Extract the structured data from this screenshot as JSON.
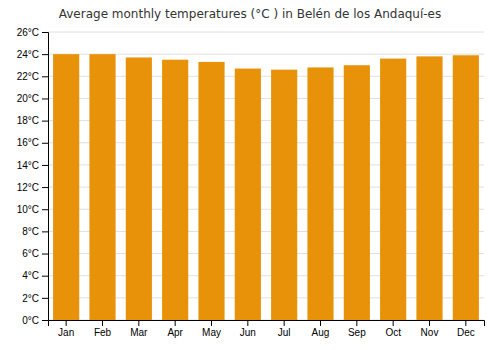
{
  "chart_data": {
    "type": "bar",
    "title": "Average monthly temperatures (°C ) in Belén de los Andaquí-es",
    "categories": [
      "Jan",
      "Feb",
      "Mar",
      "Apr",
      "May",
      "Jun",
      "Jul",
      "Aug",
      "Sep",
      "Oct",
      "Nov",
      "Dec"
    ],
    "values": [
      24.0,
      24.0,
      23.7,
      23.5,
      23.3,
      22.7,
      22.6,
      22.8,
      23.0,
      23.6,
      23.8,
      23.9
    ],
    "color": "#E8920A",
    "ylim": [
      0,
      26
    ],
    "yticks": [
      {
        "value": 0,
        "label": "0°C"
      },
      {
        "value": 2,
        "label": "2°C"
      },
      {
        "value": 4,
        "label": "4°C"
      },
      {
        "value": 6,
        "label": "6°C"
      },
      {
        "value": 8,
        "label": "8°C"
      },
      {
        "value": 10,
        "label": "10°C"
      },
      {
        "value": 12,
        "label": "12°C"
      },
      {
        "value": 14,
        "label": "14°C"
      },
      {
        "value": 16,
        "label": "16°C"
      },
      {
        "value": 18,
        "label": "18°C"
      },
      {
        "value": 20,
        "label": "20°C"
      },
      {
        "value": 22,
        "label": "22°C"
      },
      {
        "value": 24,
        "label": "24°C"
      },
      {
        "value": 26,
        "label": "26°C"
      }
    ],
    "grid": true
  }
}
